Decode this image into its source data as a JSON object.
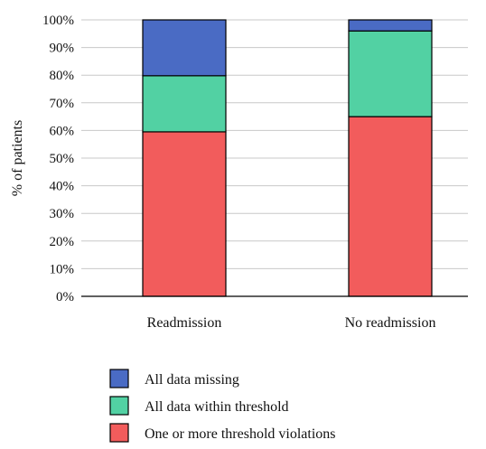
{
  "chart_data": {
    "type": "bar",
    "stacked": true,
    "ylabel": "% of patients",
    "xlabel": "",
    "ylim": [
      0,
      100
    ],
    "yticks": [
      "0%",
      "10%",
      "20%",
      "30%",
      "40%",
      "50%",
      "60%",
      "70%",
      "80%",
      "90%",
      "100%"
    ],
    "grid": true,
    "legend_position": "bottom",
    "categories": [
      "Readmission",
      "No readmission"
    ],
    "series": [
      {
        "name": "One or more threshold violations",
        "values": [
          59.5,
          65
        ],
        "color": "#f25c5c"
      },
      {
        "name": "All data within threshold",
        "values": [
          20.3,
          31
        ],
        "color": "#52d1a3"
      },
      {
        "name": "All data missing",
        "values": [
          20.2,
          4
        ],
        "color": "#4a6bc4"
      }
    ],
    "legend_order": [
      "All data missing",
      "All data within threshold",
      "One or more threshold violations"
    ]
  }
}
